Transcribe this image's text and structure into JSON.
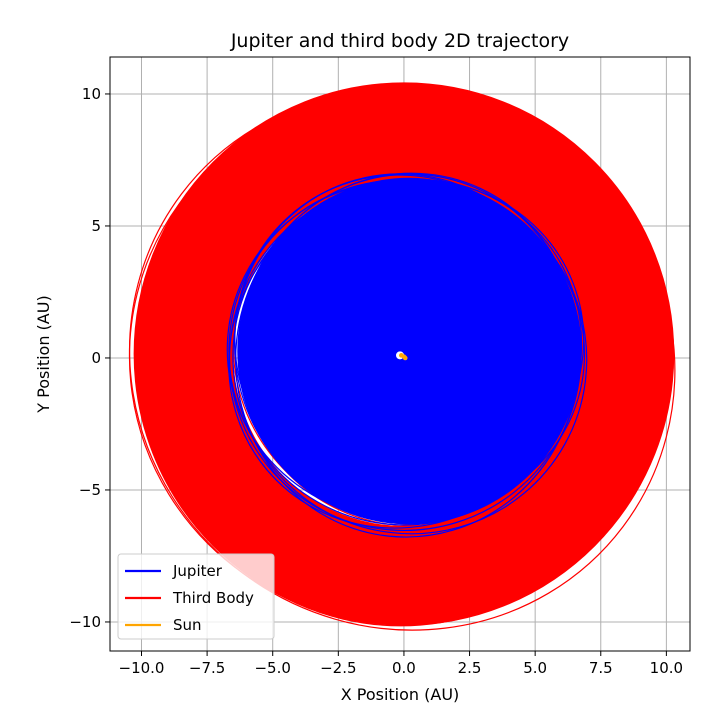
{
  "chart_data": {
    "type": "line",
    "title": "Jupiter and third body 2D trajectory",
    "xlabel": "X Position (AU)",
    "ylabel": "Y Position (AU)",
    "xlim": [
      -11.2,
      10.9
    ],
    "ylim": [
      -11.1,
      11.4
    ],
    "xticks": [
      -10.0,
      -7.5,
      -5.0,
      -2.5,
      0.0,
      2.5,
      5.0,
      7.5,
      10.0
    ],
    "xtick_labels": [
      "−10.0",
      "−7.5",
      "−5.0",
      "−2.5",
      "0.0",
      "2.5",
      "5.0",
      "7.5",
      "10.0"
    ],
    "yticks": [
      -10,
      -5,
      0,
      5,
      10
    ],
    "ytick_labels": [
      "−10",
      "−5",
      "0",
      "5",
      "10"
    ],
    "grid": true,
    "legend_position": "lower-left",
    "series": [
      {
        "name": "Jupiter",
        "color": "#0000ff",
        "kind": "orbit-band",
        "center": [
          0.2,
          0.25
        ],
        "outer_radius": 6.55,
        "inner_radius": 0,
        "orbit_count": 14
      },
      {
        "name": "Third Body",
        "color": "#ff0000",
        "kind": "orbit-band",
        "center": [
          0.0,
          0.15
        ],
        "outer_radius": 10.3,
        "inner_radius": 6.5,
        "orbit_count": 30
      },
      {
        "name": "Sun",
        "color": "#ffa500",
        "kind": "point-cluster",
        "points": [
          [
            0.0,
            0.05
          ],
          [
            -0.1,
            0.1
          ],
          [
            0.05,
            0.0
          ]
        ]
      }
    ]
  }
}
